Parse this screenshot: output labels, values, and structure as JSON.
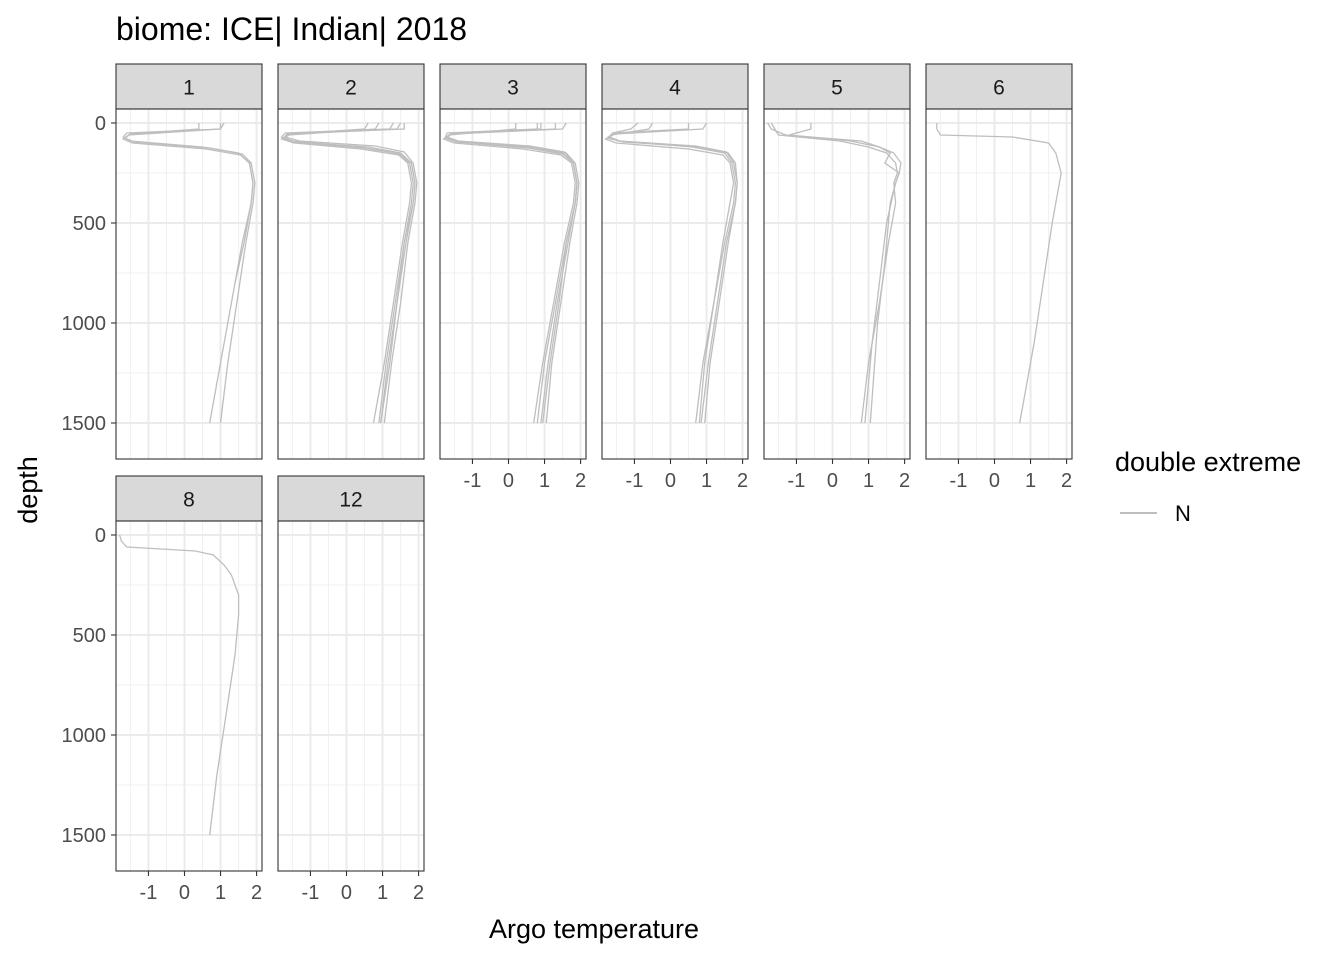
{
  "chart_data": {
    "type": "line",
    "title": "biome: ICE| Indian| 2018",
    "xlabel": "Argo temperature",
    "ylabel": "depth",
    "xlim": [
      -1.9,
      2.15
    ],
    "ylim": [
      1680,
      -70
    ],
    "y_reversed": true,
    "x_ticks": [
      -1,
      0,
      1,
      2
    ],
    "x_tick_labels": [
      "-1",
      "0",
      "1",
      "2"
    ],
    "y_ticks": [
      0,
      500,
      1000,
      1500
    ],
    "y_tick_labels": [
      "0",
      "500",
      "1000",
      "1500"
    ],
    "grid": true,
    "legend": {
      "title": "double extreme",
      "placement": "right",
      "entries": [
        {
          "label": "N",
          "color": "#bebebe"
        }
      ]
    },
    "line_color": "#bebebe",
    "facets": [
      {
        "label": "1",
        "profiles": [
          {
            "x": [
              1.0,
              1.0,
              -1.6,
              -1.7,
              -1.5,
              0.5,
              1.5,
              1.8,
              1.9,
              1.85,
              1.6,
              1.3,
              1.0,
              0.7
            ],
            "y": [
              0,
              30,
              50,
              70,
              90,
              120,
              150,
              200,
              300,
              400,
              600,
              900,
              1200,
              1500
            ]
          },
          {
            "x": [
              0.4,
              0.4,
              -1.5,
              -1.65,
              -1.4,
              0.7,
              1.6,
              1.85,
              1.95,
              1.9,
              1.7,
              1.45,
              1.2,
              1.0
            ],
            "y": [
              0,
              30,
              55,
              75,
              95,
              125,
              155,
              200,
              300,
              400,
              600,
              900,
              1200,
              1500
            ]
          },
          {
            "x": [
              1.1,
              1.0,
              -1.55,
              -1.7,
              -1.45,
              0.6,
              1.55,
              1.8,
              1.9,
              1.85,
              1.65,
              1.4
            ],
            "y": [
              0,
              30,
              60,
              80,
              100,
              130,
              160,
              200,
              300,
              400,
              600,
              800
            ]
          }
        ]
      },
      {
        "label": "2",
        "profiles": [
          {
            "x": [
              1.3,
              1.2,
              -1.7,
              -1.8,
              -1.5,
              0.3,
              1.4,
              1.75,
              1.85,
              1.8,
              1.6,
              1.35,
              1.1,
              0.9
            ],
            "y": [
              0,
              30,
              50,
              70,
              90,
              120,
              150,
              200,
              300,
              400,
              600,
              900,
              1200,
              1500
            ]
          },
          {
            "x": [
              0.6,
              0.5,
              -1.6,
              -1.75,
              -1.4,
              0.6,
              1.5,
              1.8,
              1.9,
              1.85,
              1.65,
              1.4,
              1.2,
              0.95
            ],
            "y": [
              0,
              30,
              55,
              75,
              95,
              120,
              150,
              200,
              300,
              400,
              600,
              900,
              1200,
              1500
            ]
          },
          {
            "x": [
              1.5,
              1.4,
              -1.5,
              -1.7,
              -1.3,
              0.8,
              1.6,
              1.85,
              1.95,
              1.9,
              1.7,
              1.5,
              1.25,
              1.05
            ],
            "y": [
              0,
              30,
              50,
              70,
              90,
              115,
              145,
              200,
              300,
              400,
              600,
              900,
              1200,
              1500
            ]
          },
          {
            "x": [
              0.9,
              0.8,
              -1.6,
              -1.8,
              -1.45,
              0.4,
              1.45,
              1.7,
              1.8,
              1.75,
              1.55,
              1.3,
              1.05,
              0.75
            ],
            "y": [
              0,
              30,
              60,
              80,
              100,
              130,
              160,
              200,
              300,
              400,
              600,
              900,
              1200,
              1500
            ]
          },
          {
            "x": [
              1.6,
              1.6,
              -1.65,
              -1.75,
              -1.5,
              0.5,
              1.5,
              1.8,
              1.9,
              1.85,
              1.6,
              1.4,
              1.15,
              0.95
            ],
            "y": [
              0,
              30,
              55,
              75,
              95,
              125,
              155,
              200,
              300,
              400,
              600,
              900,
              1200,
              1500
            ]
          }
        ]
      },
      {
        "label": "3",
        "profiles": [
          {
            "x": [
              0.8,
              0.8,
              -1.7,
              -1.75,
              -1.4,
              0.5,
              1.5,
              1.8,
              1.9,
              1.85,
              1.6,
              1.3,
              1.0,
              0.8
            ],
            "y": [
              0,
              30,
              50,
              70,
              90,
              120,
              150,
              200,
              300,
              400,
              600,
              900,
              1200,
              1500
            ]
          },
          {
            "x": [
              1.6,
              1.5,
              -1.6,
              -1.7,
              -1.3,
              0.7,
              1.6,
              1.85,
              1.95,
              1.9,
              1.7,
              1.45,
              1.2,
              1.05
            ],
            "y": [
              0,
              30,
              55,
              75,
              95,
              120,
              150,
              200,
              300,
              400,
              600,
              900,
              1200,
              1500
            ]
          },
          {
            "x": [
              0.2,
              0.2,
              -1.65,
              -1.8,
              -1.5,
              0.4,
              1.45,
              1.75,
              1.85,
              1.8,
              1.55,
              1.25,
              0.95,
              0.7
            ],
            "y": [
              0,
              30,
              60,
              80,
              100,
              130,
              160,
              200,
              300,
              400,
              600,
              900,
              1200,
              1500
            ]
          },
          {
            "x": [
              0.9,
              0.9,
              -1.55,
              -1.7,
              -1.4,
              0.6,
              1.55,
              1.8,
              1.9,
              1.85,
              1.65,
              1.35,
              1.1,
              0.9
            ],
            "y": [
              0,
              30,
              50,
              70,
              90,
              115,
              145,
              200,
              300,
              400,
              600,
              900,
              1200,
              1500
            ]
          },
          {
            "x": [
              1.3,
              1.3,
              -1.6,
              -1.75,
              -1.45,
              0.55,
              1.5,
              1.8,
              1.9,
              1.85,
              1.6,
              1.4,
              1.15,
              0.95
            ],
            "y": [
              0,
              30,
              55,
              75,
              95,
              125,
              155,
              200,
              300,
              400,
              600,
              900,
              1200,
              1500
            ]
          }
        ]
      },
      {
        "label": "4",
        "profiles": [
          {
            "x": [
              -0.9,
              -1.1,
              -1.6,
              -1.7,
              -1.4,
              0.6,
              1.5,
              1.7,
              1.8,
              1.75,
              1.5,
              1.2,
              0.9,
              0.7
            ],
            "y": [
              0,
              30,
              50,
              70,
              90,
              120,
              150,
              200,
              300,
              400,
              600,
              900,
              1200,
              1500
            ]
          },
          {
            "x": [
              1.0,
              0.9,
              -1.55,
              -1.75,
              -1.3,
              0.8,
              1.6,
              1.8,
              1.85,
              1.8,
              1.6,
              1.35,
              1.1,
              0.95
            ],
            "y": [
              0,
              30,
              55,
              75,
              95,
              120,
              150,
              200,
              300,
              400,
              600,
              900,
              1200,
              1500
            ]
          },
          {
            "x": [
              -0.5,
              -0.6,
              -1.65,
              -1.8,
              -1.5,
              0.5,
              1.45,
              1.65,
              1.75,
              1.65,
              1.45,
              1.2,
              0.95,
              0.8
            ],
            "y": [
              0,
              30,
              60,
              80,
              100,
              130,
              160,
              200,
              300,
              400,
              600,
              900,
              1200,
              1500
            ]
          },
          {
            "x": [
              0.5,
              0.5,
              -1.6,
              -1.7,
              -1.45,
              0.7,
              1.55,
              1.75,
              1.85,
              1.8,
              1.55,
              1.3,
              1.05,
              0.85
            ],
            "y": [
              0,
              30,
              50,
              70,
              90,
              115,
              145,
              200,
              300,
              400,
              600,
              900,
              1200,
              1500
            ]
          }
        ]
      },
      {
        "label": "5",
        "profiles": [
          {
            "x": [
              -1.7,
              -1.6,
              -1.5,
              0.2,
              1.0,
              1.5,
              1.75,
              1.8,
              1.7,
              1.75,
              1.55,
              1.3,
              1.0,
              0.8
            ],
            "y": [
              0,
              30,
              60,
              90,
              120,
              150,
              200,
              250,
              300,
              400,
              600,
              900,
              1200,
              1500
            ]
          },
          {
            "x": [
              -0.6,
              -0.6,
              -1.2,
              0.5,
              1.3,
              1.6,
              1.45,
              1.85,
              1.75,
              1.6,
              1.45,
              1.25,
              1.05
            ],
            "y": [
              0,
              30,
              60,
              90,
              120,
              150,
              200,
              250,
              300,
              400,
              700,
              1000,
              1500
            ]
          },
          {
            "x": [
              -1.8,
              -1.7,
              -1.3,
              0.8,
              1.3,
              1.7,
              1.9,
              1.85,
              1.75,
              1.5,
              1.3,
              1.1,
              0.9
            ],
            "y": [
              0,
              30,
              60,
              90,
              120,
              150,
              200,
              250,
              300,
              500,
              800,
              1100,
              1500
            ]
          }
        ]
      },
      {
        "label": "6",
        "profiles": [
          {
            "x": [
              -1.6,
              -1.6,
              -1.5,
              0.5,
              1.5,
              1.7,
              1.85,
              1.8,
              1.6,
              1.35,
              1.1,
              0.7
            ],
            "y": [
              0,
              30,
              60,
              70,
              100,
              150,
              250,
              300,
              500,
              800,
              1100,
              1500
            ]
          }
        ]
      },
      {
        "label": "8",
        "profiles": [
          {
            "x": [
              -1.8,
              -1.75,
              -1.6,
              0.3,
              0.8,
              1.1,
              1.3,
              1.5,
              1.5,
              1.4,
              1.15,
              0.9,
              0.7
            ],
            "y": [
              0,
              30,
              60,
              80,
              100,
              150,
              200,
              300,
              400,
              600,
              900,
              1200,
              1500
            ]
          }
        ]
      },
      {
        "label": "12",
        "profiles": []
      }
    ]
  }
}
